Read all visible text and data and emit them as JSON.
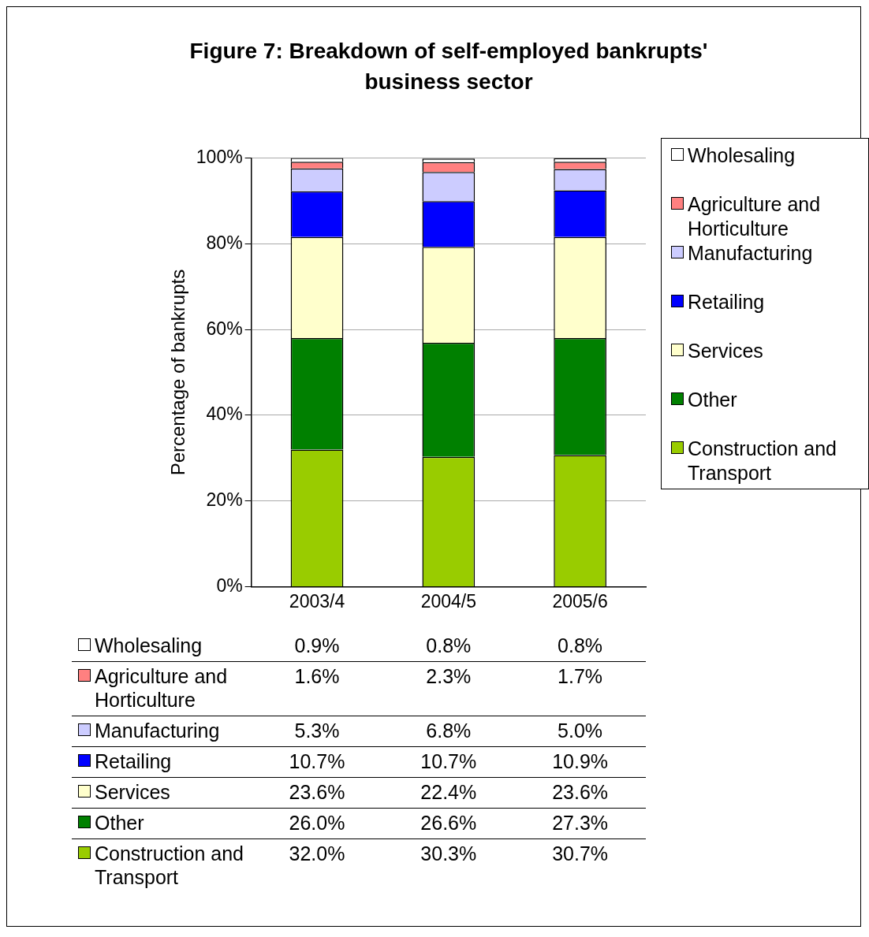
{
  "chart_data": {
    "type": "bar",
    "title": "Figure 7: Breakdown of self-employed bankrupts' business sector",
    "ylabel": "Percentage of bankrupts",
    "categories": [
      "2003/4",
      "2004/5",
      "2005/6"
    ],
    "stacked": true,
    "ylim": [
      0,
      100
    ],
    "yticks": [
      {
        "value": 0,
        "label": "0%"
      },
      {
        "value": 20,
        "label": "20%"
      },
      {
        "value": 40,
        "label": "40%"
      },
      {
        "value": 60,
        "label": "60%"
      },
      {
        "value": 80,
        "label": "80%"
      },
      {
        "value": 100,
        "label": "100%"
      }
    ],
    "grid": "y",
    "legend": "right",
    "series": [
      {
        "name": "Construction and Transport",
        "color": "#99cc00",
        "values": [
          32.0,
          30.3,
          30.7
        ],
        "value_labels": [
          "32.0%",
          "30.3%",
          "30.7%"
        ]
      },
      {
        "name": "Other",
        "color": "#008000",
        "values": [
          26.0,
          26.6,
          27.3
        ],
        "value_labels": [
          "26.0%",
          "26.6%",
          "27.3%"
        ]
      },
      {
        "name": "Services",
        "color": "#ffffcc",
        "values": [
          23.6,
          22.4,
          23.6
        ],
        "value_labels": [
          "23.6%",
          "22.4%",
          "23.6%"
        ]
      },
      {
        "name": "Retailing",
        "color": "#0000ff",
        "values": [
          10.7,
          10.7,
          10.9
        ],
        "value_labels": [
          "10.7%",
          "10.7%",
          "10.9%"
        ]
      },
      {
        "name": "Manufacturing",
        "color": "#ccccff",
        "values": [
          5.3,
          6.8,
          5.0
        ],
        "value_labels": [
          "5.3%",
          "6.8%",
          "5.0%"
        ]
      },
      {
        "name": "Agriculture and Horticulture",
        "color": "#ff8080",
        "values": [
          1.6,
          2.3,
          1.7
        ],
        "value_labels": [
          "1.6%",
          "2.3%",
          "1.7%"
        ]
      },
      {
        "name": "Wholesaling",
        "color": "#ffffff",
        "values": [
          0.9,
          0.8,
          0.8
        ],
        "value_labels": [
          "0.9%",
          "0.8%",
          "0.8%"
        ]
      }
    ]
  }
}
